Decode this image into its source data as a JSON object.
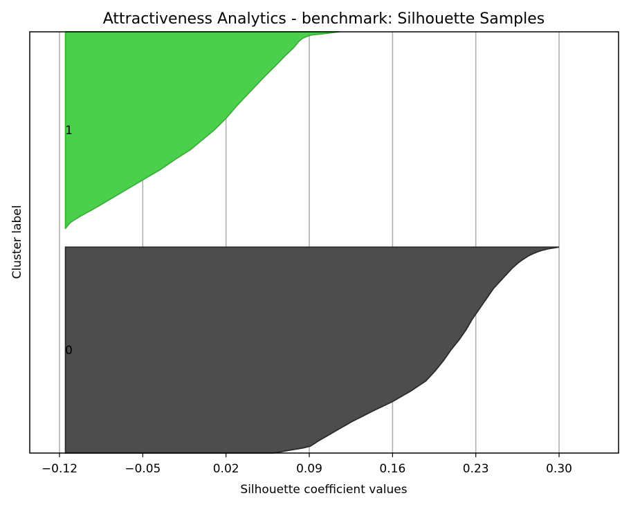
{
  "chart_data": {
    "type": "area",
    "title": "Attractiveness Analytics - benchmark: Silhouette Samples",
    "xlabel": "Silhouette coefficient values",
    "ylabel": "Cluster label",
    "xlim": [
      -0.145,
      0.35
    ],
    "x_ticks": [
      -0.12,
      -0.05,
      0.02,
      0.09,
      0.16,
      0.23,
      0.3
    ],
    "x_tick_labels": [
      "−0.12",
      "−0.05",
      "0.02",
      "0.09",
      "0.16",
      "0.23",
      "0.30"
    ],
    "grid": "x",
    "baseline": -0.115,
    "y_ticks": [
      {
        "label": "0",
        "cluster": 0
      },
      {
        "label": "1",
        "cluster": 1
      }
    ],
    "series": [
      {
        "cluster": 0,
        "color": "#4d4d4d",
        "edge_color": "#2b2b2b",
        "samples": 132,
        "profile": [
          [
            0.0,
            0.3
          ],
          [
            0.01,
            0.289
          ],
          [
            0.02,
            0.283
          ],
          [
            0.04,
            0.275
          ],
          [
            0.07,
            0.267
          ],
          [
            0.1,
            0.261
          ],
          [
            0.15,
            0.253
          ],
          [
            0.2,
            0.245
          ],
          [
            0.25,
            0.239
          ],
          [
            0.3,
            0.233
          ],
          [
            0.35,
            0.227
          ],
          [
            0.4,
            0.222
          ],
          [
            0.45,
            0.216
          ],
          [
            0.5,
            0.209
          ],
          [
            0.55,
            0.203
          ],
          [
            0.6,
            0.196
          ],
          [
            0.65,
            0.188
          ],
          [
            0.7,
            0.175
          ],
          [
            0.75,
            0.16
          ],
          [
            0.8,
            0.142
          ],
          [
            0.85,
            0.125
          ],
          [
            0.9,
            0.11
          ],
          [
            0.94,
            0.098
          ],
          [
            0.97,
            0.09
          ],
          [
            0.985,
            0.075
          ],
          [
            1.0,
            0.06
          ]
        ]
      },
      {
        "cluster": 1,
        "color": "#4ccf4c",
        "edge_color": "#2eb82e",
        "samples": 126,
        "profile": [
          [
            0.0,
            0.115
          ],
          [
            0.005,
            0.11
          ],
          [
            0.015,
            0.092
          ],
          [
            0.03,
            0.085
          ],
          [
            0.05,
            0.081
          ],
          [
            0.08,
            0.077
          ],
          [
            0.12,
            0.07
          ],
          [
            0.17,
            0.062
          ],
          [
            0.23,
            0.052
          ],
          [
            0.3,
            0.041
          ],
          [
            0.37,
            0.03
          ],
          [
            0.44,
            0.02
          ],
          [
            0.5,
            0.01
          ],
          [
            0.55,
            0.0
          ],
          [
            0.6,
            -0.01
          ],
          [
            0.65,
            -0.023
          ],
          [
            0.7,
            -0.035
          ],
          [
            0.75,
            -0.049
          ],
          [
            0.8,
            -0.063
          ],
          [
            0.85,
            -0.077
          ],
          [
            0.9,
            -0.091
          ],
          [
            0.94,
            -0.103
          ],
          [
            0.97,
            -0.111
          ],
          [
            1.0,
            -0.115
          ]
        ]
      }
    ]
  }
}
